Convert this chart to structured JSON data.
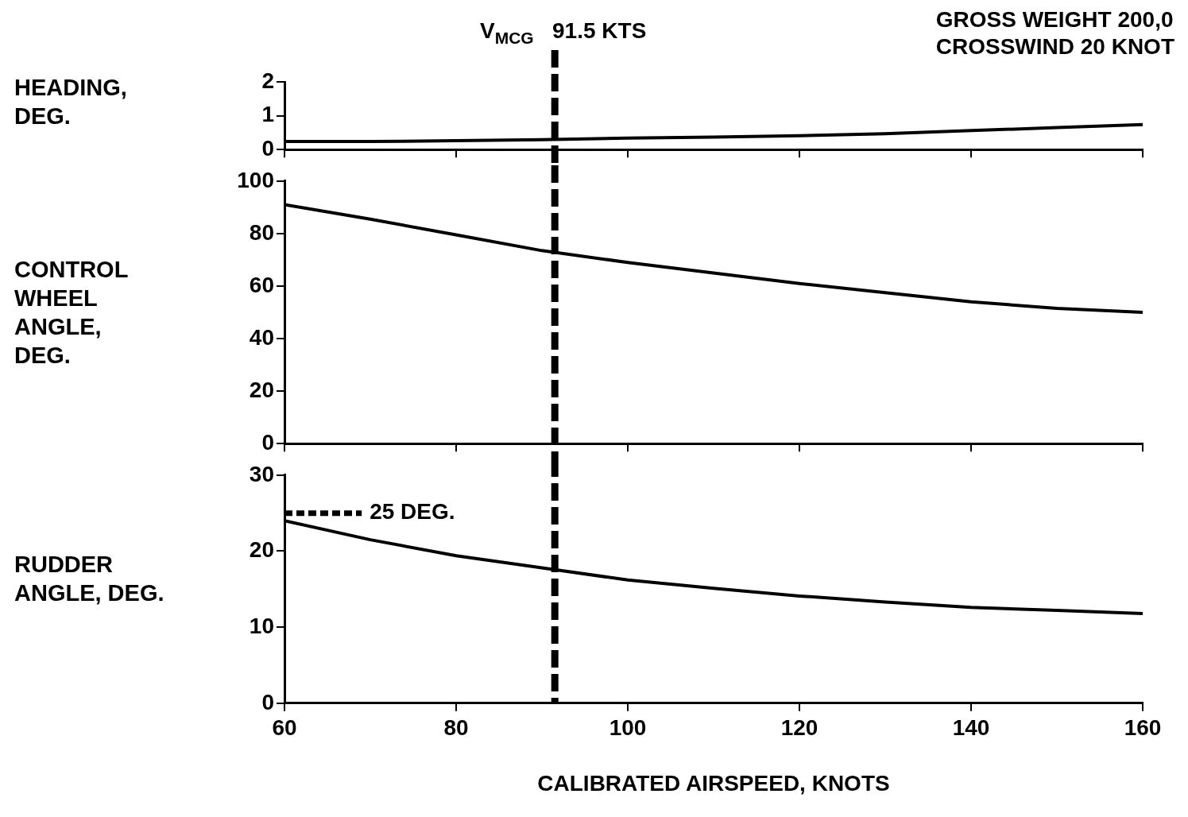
{
  "chart_data": [
    {
      "type": "line",
      "ylabel": "HEADING, DEG.",
      "annotations": [
        "GROSS WEIGHT 200,0",
        "CROSSWIND 20 KNOT"
      ],
      "x": [
        60,
        70,
        80,
        90,
        100,
        110,
        120,
        130,
        140,
        150,
        160
      ],
      "series": [
        {
          "color": "#000000",
          "values": [
            0.24,
            0.24,
            0.26,
            0.29,
            0.34,
            0.37,
            0.41,
            0.47,
            0.56,
            0.65,
            0.74
          ]
        }
      ],
      "xlim": [
        60,
        160
      ],
      "xticks": [
        60,
        80,
        100,
        120,
        140,
        160
      ],
      "ylim": [
        0,
        2
      ],
      "yticks": [
        0,
        1,
        2
      ],
      "tick_labels": "y",
      "ref_lines": [
        {
          "axis": "x",
          "value": 91.5,
          "label": "V$_{MCG}$   91.5 KTS",
          "color": "#000000",
          "line_style": "dashed"
        }
      ]
    },
    {
      "type": "line",
      "ylabel": "CONTROL WHEEL ANGLE, DEG.",
      "x": [
        60,
        70,
        80,
        90,
        100,
        110,
        120,
        130,
        140,
        150,
        160
      ],
      "series": [
        {
          "color": "#000000",
          "values": [
            91,
            85.5,
            79.5,
            73.5,
            69,
            65,
            61,
            57.5,
            54,
            51.5,
            50
          ]
        }
      ],
      "xlim": [
        60,
        160
      ],
      "xticks": [
        60,
        80,
        100,
        120,
        140,
        160
      ],
      "ylim": [
        0,
        100
      ],
      "yticks": [
        0,
        20,
        40,
        60,
        80,
        100
      ],
      "tick_labels": "y",
      "ref_lines": [
        {
          "axis": "x",
          "value": 91.5,
          "color": "#000000",
          "line_style": "dashed"
        }
      ]
    },
    {
      "type": "line",
      "ylabel": "RUDDER ANGLE, DEG.",
      "xlabel": "CALIBRATED AIRSPEED, KNOTS",
      "x": [
        60,
        70,
        80,
        90,
        100,
        110,
        120,
        130,
        140,
        150,
        160
      ],
      "series": [
        {
          "color": "#000000",
          "values": [
            24,
            21.5,
            19.4,
            17.8,
            16.2,
            15.1,
            14.1,
            13.3,
            12.6,
            12.2,
            11.8
          ]
        }
      ],
      "xlim": [
        60,
        160
      ],
      "xticks": [
        60,
        80,
        100,
        120,
        140,
        160
      ],
      "ylim": [
        0,
        30
      ],
      "yticks": [
        0,
        10,
        20,
        30
      ],
      "ref_lines": [
        {
          "axis": "x",
          "value": 91.5,
          "color": "#000000",
          "line_style": "dashed"
        },
        {
          "axis": "y",
          "value": 25,
          "label": "25 DEG.",
          "color": "#000000",
          "line_style": "dashed"
        }
      ]
    }
  ]
}
